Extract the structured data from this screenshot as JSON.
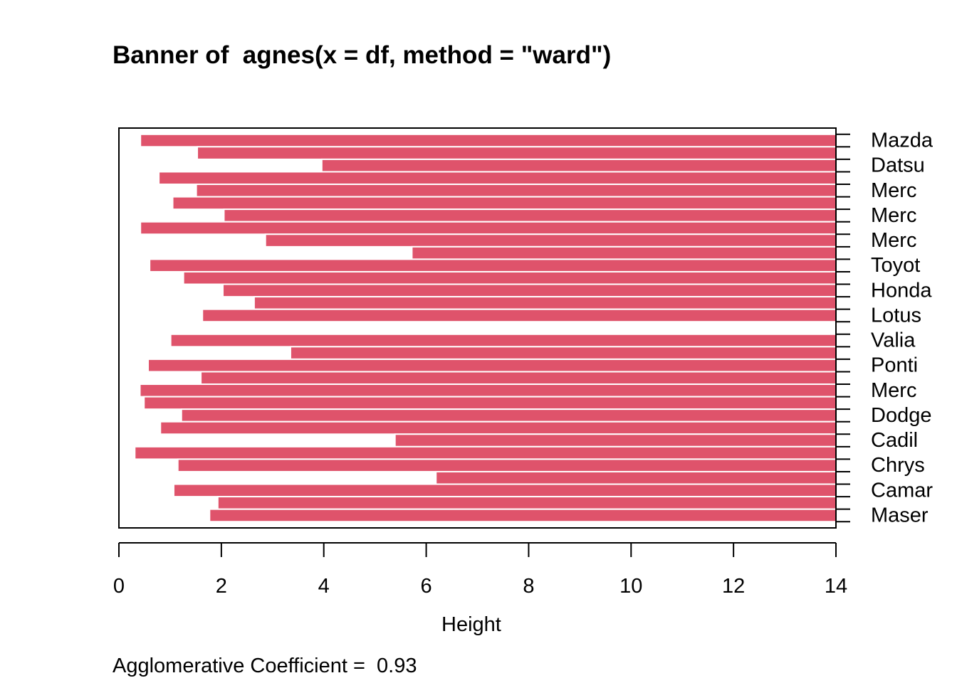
{
  "chart_data": {
    "type": "bar",
    "orientation": "horizontal",
    "title": "Banner of  agnes(x = df, method = \"ward\")",
    "xlabel": "Height",
    "xlim": [
      0,
      14
    ],
    "x_ticks": [
      0,
      2,
      4,
      6,
      8,
      10,
      12,
      14
    ],
    "bar_color": "#df536b",
    "row_labels": [
      "Mazda",
      "Datsu",
      "Merc",
      "Merc",
      "Merc",
      "Toyot",
      "Honda",
      "Lotus",
      "Valia",
      "Ponti",
      "Merc",
      "Dodge",
      "Cadil",
      "Chrys",
      "Camar",
      "Maser"
    ],
    "merge_heights": [
      0.42,
      1.53,
      3.96,
      0.78,
      1.51,
      1.05,
      2.05,
      0.42,
      2.86,
      5.72,
      0.6,
      1.26,
      2.03,
      2.64,
      1.63,
      14.0,
      1.01,
      3.35,
      0.57,
      1.6,
      0.41,
      0.49,
      1.22,
      0.81,
      5.39,
      0.31,
      1.15,
      6.19,
      1.07,
      1.93,
      1.77
    ],
    "agglomerative_coefficient_label": "Agglomerative Coefficient =  0.93"
  }
}
